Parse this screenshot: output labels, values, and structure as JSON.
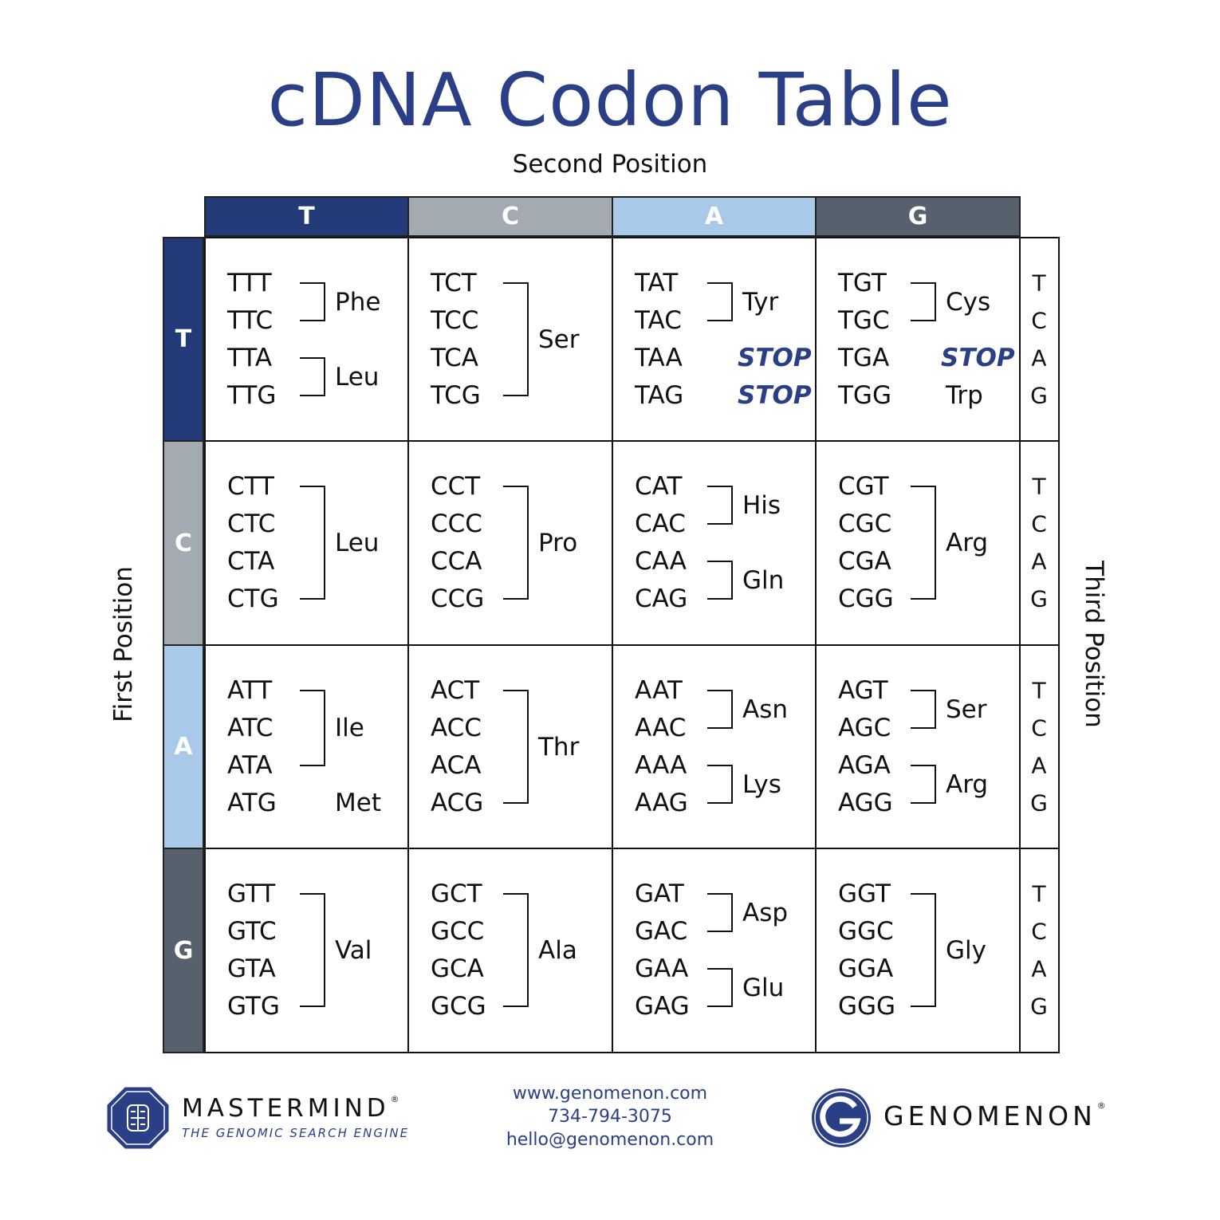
{
  "title": "cDNA Codon Table",
  "axis_labels": {
    "second": "Second Position",
    "first": "First Position",
    "third": "Third Position"
  },
  "bases": [
    "T",
    "C",
    "A",
    "G"
  ],
  "base_colors": {
    "T": "#233a78",
    "C": "#a4aab2",
    "A": "#a9c9e8",
    "G": "#57606d"
  },
  "stop_color": "#2a3f86",
  "cells": [
    [
      {
        "codons": [
          "TTT",
          "TTC",
          "TTA",
          "TTG"
        ],
        "groups": [
          {
            "from": 0,
            "to": 1,
            "aa": "Phe",
            "bracket": true
          },
          {
            "from": 2,
            "to": 3,
            "aa": "Leu",
            "bracket": true
          }
        ]
      },
      {
        "codons": [
          "TCT",
          "TCC",
          "TCA",
          "TCG"
        ],
        "groups": [
          {
            "from": 0,
            "to": 3,
            "aa": "Ser",
            "bracket": true
          }
        ]
      },
      {
        "codons": [
          "TAT",
          "TAC",
          "TAA",
          "TAG"
        ],
        "groups": [
          {
            "from": 0,
            "to": 1,
            "aa": "Tyr",
            "bracket": true
          },
          {
            "from": 2,
            "to": 2,
            "aa": "STOP",
            "stop": true
          },
          {
            "from": 3,
            "to": 3,
            "aa": "STOP",
            "stop": true
          }
        ]
      },
      {
        "codons": [
          "TGT",
          "TGC",
          "TGA",
          "TGG"
        ],
        "groups": [
          {
            "from": 0,
            "to": 1,
            "aa": "Cys",
            "bracket": true
          },
          {
            "from": 2,
            "to": 2,
            "aa": "STOP",
            "stop": true
          },
          {
            "from": 3,
            "to": 3,
            "aa": "Trp"
          }
        ]
      }
    ],
    [
      {
        "codons": [
          "CTT",
          "CTC",
          "CTA",
          "CTG"
        ],
        "groups": [
          {
            "from": 0,
            "to": 3,
            "aa": "Leu",
            "bracket": true
          }
        ]
      },
      {
        "codons": [
          "CCT",
          "CCC",
          "CCA",
          "CCG"
        ],
        "groups": [
          {
            "from": 0,
            "to": 3,
            "aa": "Pro",
            "bracket": true
          }
        ]
      },
      {
        "codons": [
          "CAT",
          "CAC",
          "CAA",
          "CAG"
        ],
        "groups": [
          {
            "from": 0,
            "to": 1,
            "aa": "His",
            "bracket": true
          },
          {
            "from": 2,
            "to": 3,
            "aa": "Gln",
            "bracket": true
          }
        ]
      },
      {
        "codons": [
          "CGT",
          "CGC",
          "CGA",
          "CGG"
        ],
        "groups": [
          {
            "from": 0,
            "to": 3,
            "aa": "Arg",
            "bracket": true
          }
        ]
      }
    ],
    [
      {
        "codons": [
          "ATT",
          "ATC",
          "ATA",
          "ATG"
        ],
        "groups": [
          {
            "from": 0,
            "to": 2,
            "aa": "Ile",
            "bracket": true
          },
          {
            "from": 3,
            "to": 3,
            "aa": "Met"
          }
        ]
      },
      {
        "codons": [
          "ACT",
          "ACC",
          "ACA",
          "ACG"
        ],
        "groups": [
          {
            "from": 0,
            "to": 3,
            "aa": "Thr",
            "bracket": true
          }
        ]
      },
      {
        "codons": [
          "AAT",
          "AAC",
          "AAA",
          "AAG"
        ],
        "groups": [
          {
            "from": 0,
            "to": 1,
            "aa": "Asn",
            "bracket": true
          },
          {
            "from": 2,
            "to": 3,
            "aa": "Lys",
            "bracket": true
          }
        ]
      },
      {
        "codons": [
          "AGT",
          "AGC",
          "AGA",
          "AGG"
        ],
        "groups": [
          {
            "from": 0,
            "to": 1,
            "aa": "Ser",
            "bracket": true
          },
          {
            "from": 2,
            "to": 3,
            "aa": "Arg",
            "bracket": true
          }
        ]
      }
    ],
    [
      {
        "codons": [
          "GTT",
          "GTC",
          "GTA",
          "GTG"
        ],
        "groups": [
          {
            "from": 0,
            "to": 3,
            "aa": "Val",
            "bracket": true
          }
        ]
      },
      {
        "codons": [
          "GCT",
          "GCC",
          "GCA",
          "GCG"
        ],
        "groups": [
          {
            "from": 0,
            "to": 3,
            "aa": "Ala",
            "bracket": true
          }
        ]
      },
      {
        "codons": [
          "GAT",
          "GAC",
          "GAA",
          "GAG"
        ],
        "groups": [
          {
            "from": 0,
            "to": 1,
            "aa": "Asp",
            "bracket": true
          },
          {
            "from": 2,
            "to": 3,
            "aa": "Glu",
            "bracket": true
          }
        ]
      },
      {
        "codons": [
          "GGT",
          "GGC",
          "GGA",
          "GGG"
        ],
        "groups": [
          {
            "from": 0,
            "to": 3,
            "aa": "Gly",
            "bracket": true
          }
        ]
      }
    ]
  ],
  "footer": {
    "mastermind": {
      "name": "MASTERMIND",
      "reg": "®",
      "tagline": "THE GENOMIC SEARCH ENGINE"
    },
    "contact": {
      "website": "www.genomenon.com",
      "phone": "734-794-3075",
      "email": "hello@genomenon.com"
    },
    "genomenon": {
      "name": "GENOMENON",
      "reg": "®"
    }
  }
}
